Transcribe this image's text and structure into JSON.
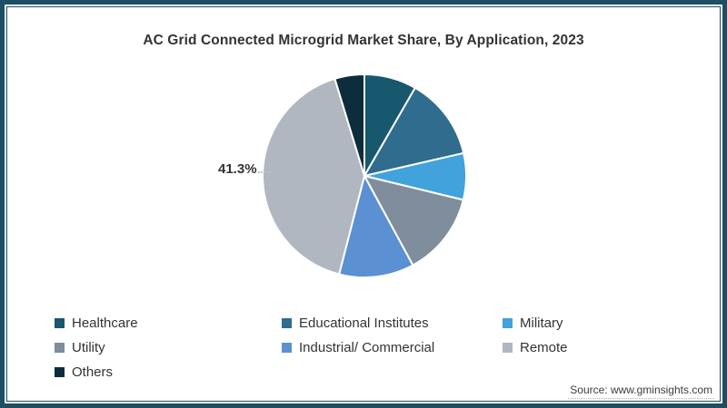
{
  "title": "AC Grid Connected Microgrid Market Share, By Application, 2023",
  "annotation": {
    "text": "41.3%",
    "target_slice": "Remote"
  },
  "source_note": "Source: www.gminsights.com",
  "frame_color": "#1d4e63",
  "chart_data": {
    "type": "pie",
    "title": "AC Grid Connected Microgrid Market Share, By Application, 2023",
    "start_angle_deg": 0,
    "direction": "clockwise",
    "legend_position": "bottom-left",
    "labeled_values": {
      "Remote": "41.3%"
    },
    "slices": [
      {
        "label": "Healthcare",
        "value": 8.3,
        "color": "#17586f"
      },
      {
        "label": "Educational Institutes",
        "value": 13.1,
        "color": "#2f6c8e"
      },
      {
        "label": "Military",
        "value": 7.4,
        "color": "#41a2dc"
      },
      {
        "label": "Utility",
        "value": 13.3,
        "color": "#7f8d9c"
      },
      {
        "label": "Industrial/ Commercial",
        "value": 11.9,
        "color": "#5b90d2"
      },
      {
        "label": "Remote",
        "value": 41.3,
        "color": "#b0b7c0"
      },
      {
        "label": "Others",
        "value": 4.7,
        "color": "#0d2d3d"
      }
    ]
  }
}
